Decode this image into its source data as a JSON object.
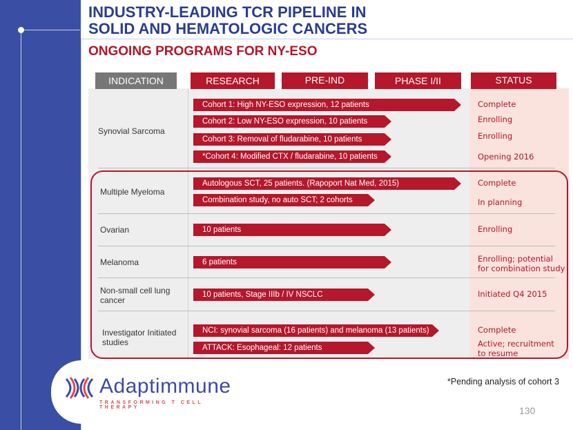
{
  "title_line1": "INDUSTRY-LEADING TCR PIPELINE IN",
  "title_line2": "SOLID AND HEMATOLOGIC CANCERS",
  "subtitle": "ONGOING PROGRAMS FOR NY-ESO",
  "headers": {
    "indication": "INDICATION",
    "research": "RESEARCH",
    "pre_ind": "PRE-IND",
    "phase": "PHASE I/II",
    "status": "STATUS"
  },
  "indications": {
    "synovial": "Synovial Sarcoma",
    "myeloma": "Multiple Myeloma",
    "ovarian": "Ovarian",
    "melanoma": "Melanoma",
    "nsclc_line1": "Non-small cell lung",
    "nsclc_line2": "cancer",
    "iis_line1": "Investigator Initiated",
    "iis_line2": "studies"
  },
  "programs": {
    "c1": "Cohort 1:  High NY-ESO expression, 12 patients",
    "c2": "Cohort 2:  Low NY-ESO expression, 10 patients",
    "c3": "Cohort 3:  Removal of fludarabine, 10 patients",
    "c4": "*Cohort 4:  Modified CTX / fludarabine, 10 patients",
    "mm1": "Autologous SCT, 25 patients. (Rapoport Nat Med, 2015)",
    "mm2": "Combination study, no auto SCT;  2 cohorts",
    "ov": "10 patients",
    "mel": "6 patients",
    "nsclc": "10 patients, Stage IIIb / IV NSCLC",
    "nci": "NCI: synovial sarcoma (16 patients) and melanoma (13 patients)",
    "attack": "ATTACK: Esophageal: 12 patients"
  },
  "statuses": {
    "c1": "Complete",
    "c2": "Enrolling",
    "c3": "Enrolling",
    "c4": "Opening 2016",
    "mm1": "Complete",
    "mm2": "In planning",
    "ov": "Enrolling",
    "mel_line1": "Enrolling; potential",
    "mel_line2": "for combination study",
    "nsclc": "Initiated Q4 2015",
    "nci": "Complete",
    "attack_line1": "Active; recruitment",
    "attack_line2": "to resume"
  },
  "footnote": "*Pending analysis of cohort 3",
  "page_number": "130",
  "logo": {
    "name": "Adaptimmune",
    "tagline": "TRANSFORMING T CELL THERAPY"
  },
  "colors": {
    "navy": "#2a3d8f",
    "red": "#b5172b",
    "sidebar": "#3a4fa3"
  }
}
